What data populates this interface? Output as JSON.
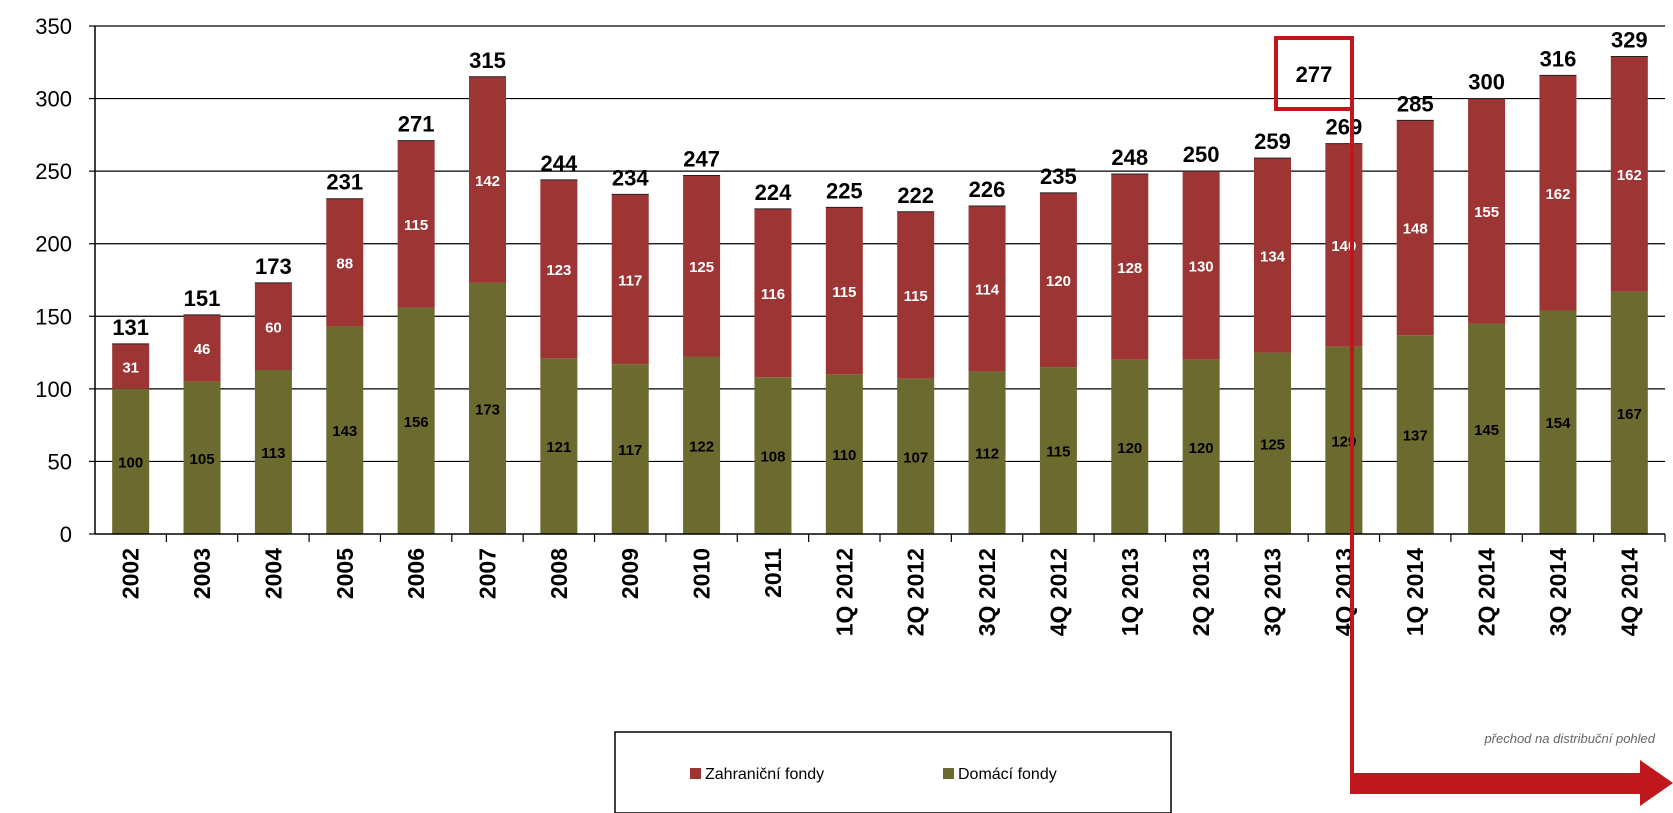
{
  "chart_data": {
    "type": "bar",
    "stacked": true,
    "categories": [
      "2002",
      "2003",
      "2004",
      "2005",
      "2006",
      "2007",
      "2008",
      "2009",
      "2010",
      "2011",
      "1Q 2012",
      "2Q 2012",
      "3Q 2012",
      "4Q 2012",
      "1Q 2013",
      "2Q 2013",
      "3Q 2013",
      "4Q 2013",
      "1Q 2014",
      "2Q 2014",
      "3Q 2014",
      "4Q 2014"
    ],
    "series": [
      {
        "name": "Domácí fondy",
        "color": "#6b6a2f",
        "values": [
          100,
          105,
          113,
          143,
          156,
          173,
          121,
          117,
          122,
          108,
          110,
          107,
          112,
          115,
          120,
          120,
          125,
          129,
          137,
          145,
          154,
          167
        ]
      },
      {
        "name": "Zahraniční fondy",
        "color": "#9e3535",
        "values": [
          31,
          46,
          60,
          88,
          115,
          142,
          123,
          117,
          125,
          116,
          115,
          115,
          114,
          120,
          128,
          130,
          134,
          140,
          148,
          155,
          162,
          162
        ]
      }
    ],
    "totals": [
      131,
      151,
      173,
      231,
      271,
      315,
      244,
      234,
      247,
      224,
      225,
      222,
      226,
      235,
      248,
      250,
      259,
      269,
      285,
      300,
      316,
      329
    ],
    "ylim": [
      0,
      350
    ],
    "yticks": [
      0,
      50,
      100,
      150,
      200,
      250,
      300,
      350
    ],
    "grid": true,
    "legend_position": "bottom-center",
    "highlight": {
      "value": "277",
      "category": "4Q 2013",
      "color": "#c0171c"
    },
    "annotation": {
      "text": "přechod na distribuční pohled",
      "after_category": "4Q 2013",
      "color": "#c0171c"
    },
    "xlabel": "",
    "ylabel": "",
    "title": ""
  }
}
